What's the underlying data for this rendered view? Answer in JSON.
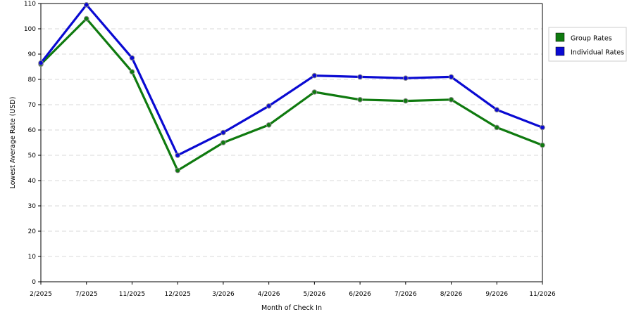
{
  "chart_data": {
    "type": "line",
    "title": "",
    "xlabel": "Month of Check In",
    "ylabel": "Lowest Average Rate (USD)",
    "categories": [
      "2/2025",
      "7/2025",
      "11/2025",
      "12/2025",
      "3/2026",
      "4/2026",
      "5/2026",
      "6/2026",
      "7/2026",
      "8/2026",
      "9/2026",
      "11/2026"
    ],
    "ylim": [
      0,
      110
    ],
    "yticks": [
      0,
      10,
      20,
      30,
      40,
      50,
      60,
      70,
      80,
      90,
      100,
      110
    ],
    "grid": true,
    "legend_position": "right",
    "series": [
      {
        "name": "Group Rates",
        "color": "#0f7a0f",
        "values": [
          86,
          104,
          83,
          44,
          55,
          62,
          75,
          72,
          71.5,
          72,
          61,
          54
        ]
      },
      {
        "name": "Individual Rates",
        "color": "#0a0ad2",
        "values": [
          86.5,
          109.5,
          88.5,
          50,
          59,
          69.5,
          81.5,
          81,
          80.5,
          81,
          68,
          61
        ]
      }
    ]
  }
}
